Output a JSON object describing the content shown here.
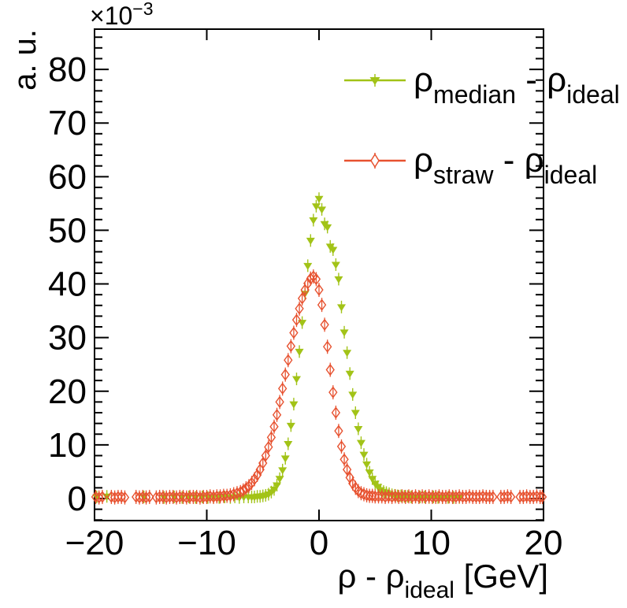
{
  "chart_data": {
    "type": "scatter",
    "title": "",
    "ylabel": "a. u.",
    "y_power_label": {
      "base": "×10",
      "exponent": "−3"
    },
    "xlabel_parts": {
      "t1": "ρ - ρ",
      "sub": "ideal",
      "t2": " [GeV]"
    },
    "xlim": [
      -20,
      20
    ],
    "ylim_in_1e-3_units": [
      -4.3,
      87.5
    ],
    "grid": false,
    "legend_position": "top-right-inside",
    "x_tick_values": [
      -20,
      -10,
      0,
      10,
      20
    ],
    "x_tick_labels": [
      "−20",
      "−10",
      "0",
      "10",
      "20"
    ],
    "y_tick_values": [
      0,
      10,
      20,
      30,
      40,
      50,
      60,
      70,
      80
    ],
    "y_tick_labels": [
      "0",
      "10",
      "20",
      "30",
      "40",
      "50",
      "60",
      "70",
      "80"
    ],
    "y_minor_tick_step": 2,
    "legend": [
      {
        "symbol": "filled-triangle-down",
        "color": "#a2c317",
        "parts": {
          "p0": "ρ",
          "p1": "median",
          "p2": " - ",
          "p3": "ρ",
          "p4": "ideal"
        }
      },
      {
        "symbol": "open-diamond",
        "color": "#e75230",
        "parts": {
          "p0": "ρ",
          "p1": "straw",
          "p2": " - ",
          "p3": "ρ",
          "p4": "ideal"
        }
      }
    ],
    "series": [
      {
        "name": "rho_median - rho_ideal",
        "marker": "filled-triangle-down",
        "color": "#a2c317",
        "units_y": "1e-3 a.u.",
        "points": [
          [
            -19.8,
            0.3
          ],
          [
            -18.9,
            0.4
          ],
          [
            -15.6,
            0.3
          ],
          [
            -13.8,
            0.2
          ],
          [
            -12.9,
            0.3
          ],
          [
            -12.2,
            0.2
          ],
          [
            -11.6,
            0.3
          ],
          [
            -11.0,
            0.2
          ],
          [
            -10.4,
            0.3
          ],
          [
            -9.9,
            0.2
          ],
          [
            -9.4,
            0.3
          ],
          [
            -8.9,
            0.2
          ],
          [
            -8.4,
            0.3
          ],
          [
            -7.9,
            0.2
          ],
          [
            -7.5,
            0.3
          ],
          [
            -7.1,
            0.2
          ],
          [
            -6.7,
            0.3
          ],
          [
            -6.3,
            0.3
          ],
          [
            -6.0,
            0.3
          ],
          [
            -5.75,
            0.3
          ],
          [
            -5.5,
            0.4
          ],
          [
            -5.25,
            0.4
          ],
          [
            -5.0,
            0.5
          ],
          [
            -4.75,
            0.6
          ],
          [
            -4.5,
            0.8
          ],
          [
            -4.25,
            1.2
          ],
          [
            -4.0,
            1.7
          ],
          [
            -3.75,
            2.5
          ],
          [
            -3.5,
            3.7
          ],
          [
            -3.25,
            5.3
          ],
          [
            -3.0,
            7.5
          ],
          [
            -2.75,
            10.2
          ],
          [
            -2.5,
            13.6
          ],
          [
            -2.25,
            17.6
          ],
          [
            -2.0,
            22.3
          ],
          [
            -1.75,
            27.4
          ],
          [
            -1.5,
            32.8
          ],
          [
            -1.25,
            38.2
          ],
          [
            -1.0,
            43.4
          ],
          [
            -0.75,
            48.1
          ],
          [
            -0.5,
            51.9
          ],
          [
            -0.25,
            54.5
          ],
          [
            0.0,
            55.9
          ],
          [
            0.25,
            53.9
          ],
          [
            0.5,
            51.2
          ],
          [
            0.75,
            50.6
          ],
          [
            1.0,
            47.0
          ],
          [
            1.25,
            46.4
          ],
          [
            1.5,
            43.6
          ],
          [
            1.75,
            40.9
          ],
          [
            2.0,
            35.7
          ],
          [
            2.25,
            31.0
          ],
          [
            2.5,
            27.2
          ],
          [
            2.75,
            23.3
          ],
          [
            3.0,
            19.4
          ],
          [
            3.25,
            16.0
          ],
          [
            3.5,
            13.0
          ],
          [
            3.75,
            10.4
          ],
          [
            4.0,
            8.2
          ],
          [
            4.25,
            6.4
          ],
          [
            4.5,
            4.9
          ],
          [
            4.75,
            3.7
          ],
          [
            5.0,
            2.8
          ],
          [
            5.25,
            2.2
          ],
          [
            5.5,
            1.6
          ],
          [
            5.75,
            1.3
          ],
          [
            6.0,
            1.1
          ],
          [
            6.25,
            0.9
          ],
          [
            6.5,
            0.7
          ],
          [
            6.75,
            0.6
          ],
          [
            7.0,
            0.5
          ],
          [
            7.3,
            0.5
          ],
          [
            7.6,
            0.4
          ],
          [
            7.9,
            0.4
          ],
          [
            8.2,
            0.3
          ],
          [
            8.6,
            0.3
          ],
          [
            9.0,
            0.3
          ],
          [
            9.4,
            0.3
          ],
          [
            9.8,
            0.2
          ],
          [
            10.2,
            0.3
          ],
          [
            10.6,
            0.2
          ],
          [
            11.0,
            0.2
          ],
          [
            11.5,
            0.2
          ],
          [
            12.0,
            0.2
          ],
          [
            12.5,
            0.2
          ]
        ]
      },
      {
        "name": "rho_straw - rho_ideal",
        "marker": "open-diamond",
        "color": "#e75230",
        "units_y": "1e-3 a.u.",
        "points": [
          [
            -19.9,
            0.3
          ],
          [
            -19.6,
            0.2
          ],
          [
            -19.3,
            0.3
          ],
          [
            -18.5,
            0.3
          ],
          [
            -18.2,
            0.2
          ],
          [
            -17.9,
            0.3
          ],
          [
            -17.6,
            0.3
          ],
          [
            -17.3,
            0.2
          ],
          [
            -16.3,
            0.3
          ],
          [
            -16.0,
            0.2
          ],
          [
            -15.7,
            0.3
          ],
          [
            -15.4,
            0.2
          ],
          [
            -15.1,
            0.3
          ],
          [
            -14.5,
            0.2
          ],
          [
            -14.2,
            0.3
          ],
          [
            -13.9,
            0.3
          ],
          [
            -13.6,
            0.2
          ],
          [
            -13.3,
            0.3
          ],
          [
            -13.0,
            0.3
          ],
          [
            -12.7,
            0.2
          ],
          [
            -12.4,
            0.3
          ],
          [
            -12.1,
            0.3
          ],
          [
            -11.8,
            0.2
          ],
          [
            -11.5,
            0.3
          ],
          [
            -11.2,
            0.3
          ],
          [
            -10.9,
            0.3
          ],
          [
            -10.6,
            0.2
          ],
          [
            -10.3,
            0.3
          ],
          [
            -10.0,
            0.3
          ],
          [
            -9.7,
            0.4
          ],
          [
            -9.4,
            0.3
          ],
          [
            -9.1,
            0.4
          ],
          [
            -8.8,
            0.4
          ],
          [
            -8.5,
            0.5
          ],
          [
            -8.2,
            0.5
          ],
          [
            -7.9,
            0.6
          ],
          [
            -7.6,
            0.8
          ],
          [
            -7.3,
            1.0
          ],
          [
            -7.0,
            1.2
          ],
          [
            -6.75,
            1.5
          ],
          [
            -6.5,
            1.9
          ],
          [
            -6.25,
            2.3
          ],
          [
            -6.0,
            2.9
          ],
          [
            -5.75,
            3.6
          ],
          [
            -5.5,
            4.4
          ],
          [
            -5.25,
            5.4
          ],
          [
            -5.0,
            6.6
          ],
          [
            -4.75,
            8.0
          ],
          [
            -4.5,
            9.6
          ],
          [
            -4.25,
            11.4
          ],
          [
            -4.0,
            13.4
          ],
          [
            -3.75,
            15.6
          ],
          [
            -3.5,
            18.0
          ],
          [
            -3.25,
            20.5
          ],
          [
            -3.0,
            23.1
          ],
          [
            -2.75,
            25.8
          ],
          [
            -2.5,
            28.4
          ],
          [
            -2.25,
            30.9
          ],
          [
            -2.0,
            33.3
          ],
          [
            -1.75,
            35.4
          ],
          [
            -1.5,
            37.3
          ],
          [
            -1.25,
            38.9
          ],
          [
            -1.0,
            40.1
          ],
          [
            -0.75,
            41.0
          ],
          [
            -0.5,
            41.4
          ],
          [
            -0.25,
            40.9
          ],
          [
            0.0,
            38.9
          ],
          [
            0.25,
            36.1
          ],
          [
            0.5,
            32.4
          ],
          [
            0.75,
            28.3
          ],
          [
            1.0,
            24.0
          ],
          [
            1.25,
            19.8
          ],
          [
            1.5,
            16.0
          ],
          [
            1.75,
            12.6
          ],
          [
            2.0,
            9.7
          ],
          [
            2.25,
            7.3
          ],
          [
            2.5,
            5.4
          ],
          [
            2.75,
            3.9
          ],
          [
            3.0,
            2.8
          ],
          [
            3.25,
            2.0
          ],
          [
            3.5,
            1.4
          ],
          [
            3.75,
            1.0
          ],
          [
            4.0,
            0.8
          ],
          [
            4.25,
            0.6
          ],
          [
            4.5,
            0.5
          ],
          [
            4.75,
            0.5
          ],
          [
            5.0,
            0.4
          ],
          [
            5.3,
            0.4
          ],
          [
            5.6,
            0.4
          ],
          [
            5.9,
            0.3
          ],
          [
            6.2,
            0.4
          ],
          [
            6.5,
            0.3
          ],
          [
            6.8,
            0.4
          ],
          [
            7.1,
            0.3
          ],
          [
            7.4,
            0.4
          ],
          [
            7.7,
            0.3
          ],
          [
            8.0,
            0.4
          ],
          [
            8.3,
            0.3
          ],
          [
            8.6,
            0.4
          ],
          [
            8.9,
            0.3
          ],
          [
            9.2,
            0.4
          ],
          [
            9.5,
            0.3
          ],
          [
            9.8,
            0.4
          ],
          [
            10.1,
            0.3
          ],
          [
            10.4,
            0.3
          ],
          [
            10.7,
            0.4
          ],
          [
            11.0,
            0.3
          ],
          [
            11.3,
            0.3
          ],
          [
            11.6,
            0.4
          ],
          [
            11.9,
            0.3
          ],
          [
            12.2,
            0.3
          ],
          [
            12.5,
            0.4
          ],
          [
            12.8,
            0.3
          ],
          [
            13.1,
            0.3
          ],
          [
            13.4,
            0.4
          ],
          [
            13.7,
            0.3
          ],
          [
            14.0,
            0.3
          ],
          [
            14.3,
            0.3
          ],
          [
            14.6,
            0.4
          ],
          [
            14.9,
            0.3
          ],
          [
            15.2,
            0.3
          ],
          [
            15.5,
            0.3
          ],
          [
            16.2,
            0.3
          ],
          [
            16.5,
            0.3
          ],
          [
            16.8,
            0.4
          ],
          [
            17.1,
            0.3
          ],
          [
            17.9,
            0.3
          ],
          [
            18.2,
            0.3
          ],
          [
            18.5,
            0.4
          ],
          [
            18.8,
            0.3
          ],
          [
            19.1,
            0.3
          ],
          [
            19.4,
            0.4
          ],
          [
            19.7,
            0.3
          ],
          [
            19.9,
            0.3
          ]
        ]
      }
    ]
  },
  "colors": {
    "axis": "#000000",
    "background": "#ffffff",
    "series_median": "#a2c317",
    "series_straw": "#e75230"
  }
}
